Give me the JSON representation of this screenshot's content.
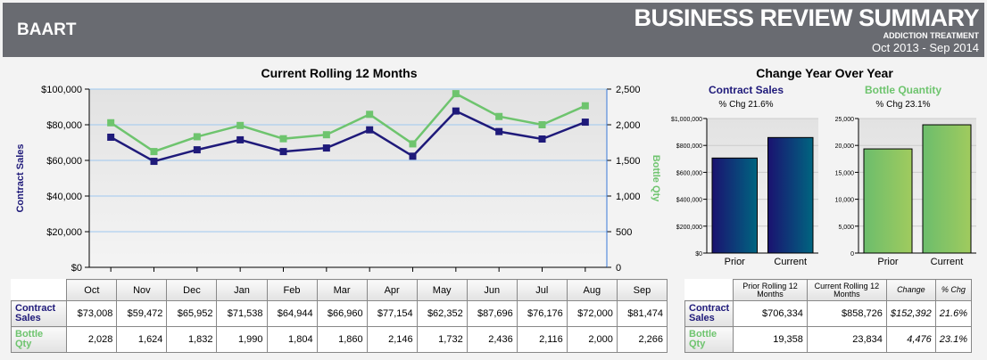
{
  "header": {
    "brand": "BAART",
    "title": "BUSINESS REVIEW SUMMARY",
    "subtitle": "ADDICTION TREATMENT",
    "period": "Oct 2013 - Sep 2014"
  },
  "colors": {
    "sales": "#1f1a7a",
    "qty": "#6ec46e"
  },
  "chart_data": [
    {
      "type": "line",
      "title": "Current Rolling 12 Months",
      "categories": [
        "Oct",
        "Nov",
        "Dec",
        "Jan",
        "Feb",
        "Mar",
        "Apr",
        "May",
        "Jun",
        "Jul",
        "Aug",
        "Sep"
      ],
      "series": [
        {
          "name": "Contract Sales",
          "axis": "left",
          "values": [
            73008,
            59472,
            65952,
            71538,
            64944,
            66960,
            77154,
            62352,
            87696,
            76176,
            72000,
            81474
          ]
        },
        {
          "name": "Bottle Qty",
          "axis": "right",
          "values": [
            2028,
            1624,
            1832,
            1990,
            1804,
            1860,
            2146,
            1732,
            2436,
            2116,
            2000,
            2266
          ]
        }
      ],
      "ylabel": "Contract Sales",
      "y2label": "Bottle Qty",
      "ylim": [
        0,
        100000
      ],
      "y2lim": [
        0,
        2500
      ],
      "yticks": [
        "$0",
        "$20,000",
        "$40,000",
        "$60,000",
        "$80,000",
        "$100,000"
      ],
      "y2ticks": [
        "0",
        "500",
        "1,000",
        "1,500",
        "2,000",
        "2,500"
      ],
      "grid": true
    },
    {
      "type": "bar",
      "title": "Contract Sales",
      "subtitle": "% Chg 21.6%",
      "categories": [
        "Prior",
        "Current"
      ],
      "values": [
        706334,
        858726
      ],
      "ylim": [
        0,
        1000000
      ],
      "yticks": [
        "$0",
        "$200,000",
        "$400,000",
        "$600,000",
        "$800,000",
        "$1,000,000"
      ]
    },
    {
      "type": "bar",
      "title": "Bottle Quantity",
      "subtitle": "% Chg 23.1%",
      "categories": [
        "Prior",
        "Current"
      ],
      "values": [
        19358,
        23834
      ],
      "ylim": [
        0,
        25000
      ],
      "yticks": [
        "0",
        "5,000",
        "10,000",
        "15,000",
        "20,000",
        "25,000"
      ]
    }
  ],
  "yoy_title": "Change Year Over Year",
  "monthly_table": {
    "rows": [
      {
        "label": "Contract Sales",
        "values": [
          "$73,008",
          "$59,472",
          "$65,952",
          "$71,538",
          "$64,944",
          "$66,960",
          "$77,154",
          "$62,352",
          "$87,696",
          "$76,176",
          "$72,000",
          "$81,474"
        ]
      },
      {
        "label": "Bottle Qty",
        "values": [
          "2,028",
          "1,624",
          "1,832",
          "1,990",
          "1,804",
          "1,860",
          "2,146",
          "1,732",
          "2,436",
          "2,116",
          "2,000",
          "2,266"
        ]
      }
    ]
  },
  "yoy_table": {
    "headers": [
      "Prior Rolling 12 Months",
      "Current Rolling 12 Months",
      "Change",
      "% Chg"
    ],
    "rows": [
      {
        "label": "Contract Sales",
        "values": [
          "$706,334",
          "$858,726",
          "$152,392",
          "21.6%"
        ]
      },
      {
        "label": "Bottle Qty",
        "values": [
          "19,358",
          "23,834",
          "4,476",
          "23.1%"
        ]
      }
    ]
  }
}
